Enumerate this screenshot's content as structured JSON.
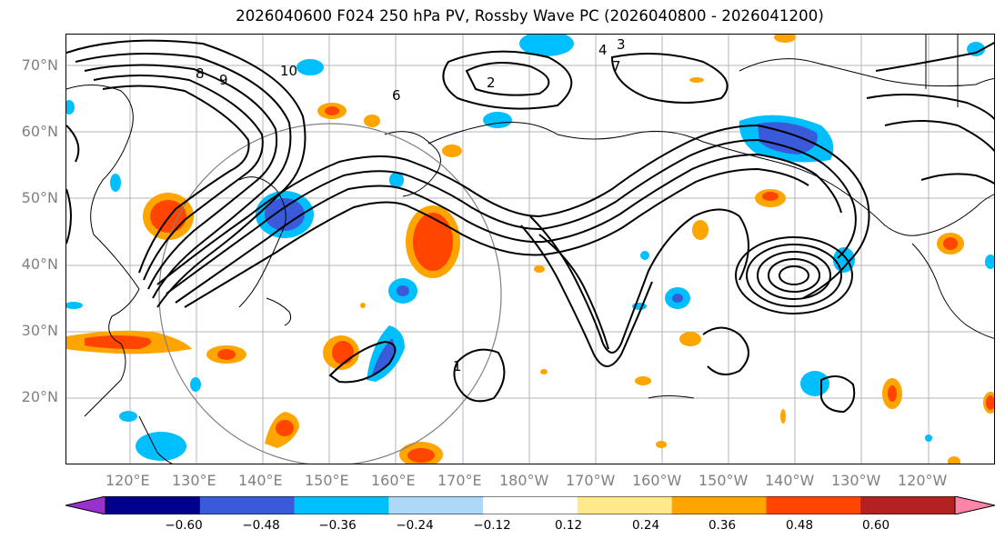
{
  "title": "2026040600 F024 250 hPa PV, Rossby Wave PC (2026040800 - 2026041200)",
  "lat_labels": [
    "70°N",
    "60°N",
    "50°N",
    "40°N",
    "30°N",
    "20°N"
  ],
  "lon_labels": [
    "120°E",
    "130°E",
    "140°E",
    "150°E",
    "160°E",
    "170°E",
    "180°W",
    "170°W",
    "160°W",
    "150°W",
    "140°W",
    "130°W",
    "120°W"
  ],
  "colorbar": {
    "tick_labels": [
      "−0.60",
      "−0.48",
      "−0.36",
      "−0.24",
      "−0.12",
      "0.12",
      "0.24",
      "0.36",
      "0.48",
      "0.60"
    ],
    "colors": [
      "#9932cc",
      "#00008b",
      "#3a5bd9",
      "#00bfff",
      "#add8f7",
      "#ffffff",
      "#ffe98a",
      "#ffa500",
      "#ff4500",
      "#b22222",
      "#ff85a8"
    ]
  },
  "contour_labels": [
    {
      "text": "10"
    },
    {
      "text": "9"
    },
    {
      "text": "8"
    },
    {
      "text": "7"
    },
    {
      "text": "6"
    },
    {
      "text": "4"
    },
    {
      "text": "3"
    },
    {
      "text": "2"
    },
    {
      "text": "1"
    }
  ]
}
